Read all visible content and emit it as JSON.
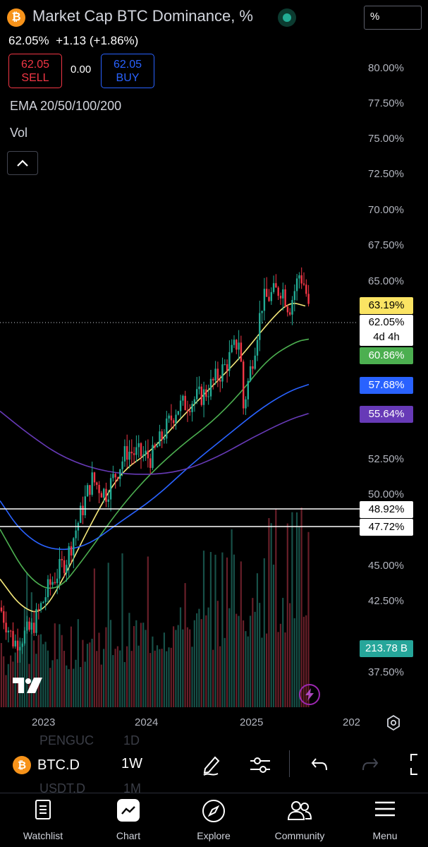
{
  "header": {
    "title": "Market Cap BTC Dominance, %",
    "scale_mode": "%",
    "last": "62.05%",
    "change": "+1.13 (+1.86%)",
    "sell_price": "62.05",
    "sell_label": "SELL",
    "spread": "0.00",
    "buy_price": "62.05",
    "buy_label": "BUY"
  },
  "indicators": [
    {
      "label": "EMA 20/50/100/200"
    },
    {
      "label": "Vol"
    }
  ],
  "y_axis": [
    "80.00%",
    "77.50%",
    "75.00%",
    "72.50%",
    "70.00%",
    "67.50%",
    "65.00%",
    "52.50%",
    "50.00%",
    "45.00%",
    "42.50%",
    "37.50%"
  ],
  "badges": {
    "ema20": "63.19%",
    "last_price": "62.05%",
    "countdown": "4d 4h",
    "ema50": "60.86%",
    "ema100": "57.68%",
    "ema200": "55.64%",
    "level_upper": "48.92%",
    "level_lower": "47.72%",
    "volume": "213.78 B"
  },
  "x_axis": [
    "2023",
    "2024",
    "2025",
    "202"
  ],
  "bottom_bar": {
    "symbol": "BTC.D",
    "interval": "1W",
    "ghost_symbol_above": "PENGUC",
    "ghost_interval_above": "1D",
    "ghost_symbol_below": "USDT.D",
    "ghost_interval_below": "1M"
  },
  "nav": [
    {
      "label": "Watchlist",
      "icon": "watchlist-icon"
    },
    {
      "label": "Chart",
      "icon": "chart-icon"
    },
    {
      "label": "Explore",
      "icon": "compass-icon"
    },
    {
      "label": "Community",
      "icon": "community-icon"
    },
    {
      "label": "Menu",
      "icon": "menu-icon"
    }
  ],
  "colors": {
    "up": "#22ab94",
    "down": "#f23645",
    "ema20": "#f5e87a",
    "ema50": "#4caf50",
    "ema100": "#2962ff",
    "ema200": "#673ab7"
  },
  "chart_data": {
    "type": "candlestick",
    "symbol": "BTC.D",
    "interval": "1W",
    "y_unit": "%",
    "y_range": [
      35.5,
      82.0
    ],
    "last": 62.05,
    "ema": {
      "20": 63.19,
      "50": 60.86,
      "100": 57.68,
      "200": 55.64
    },
    "horizontal_levels": [
      48.92,
      47.72
    ],
    "x_ticks": [
      "2023",
      "2024",
      "2025",
      "202"
    ]
  }
}
